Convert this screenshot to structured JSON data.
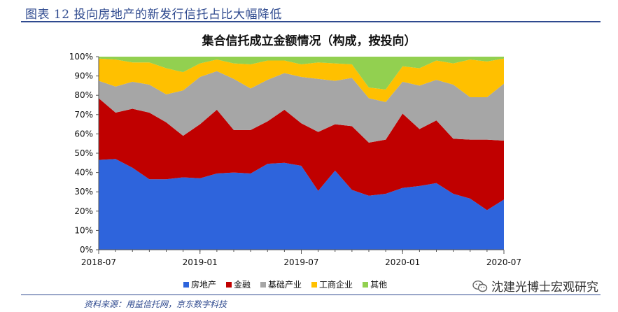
{
  "figure": {
    "caption": "图表 12 投向房地产的新发行信托占比大幅降低",
    "source": "资料来源：用益信托网，京东数字科技",
    "watermark": "沈建光博士宏观研究"
  },
  "chart_data": {
    "type": "area",
    "stacked": true,
    "title": "集合信托成立金额情况（构成，按投向）",
    "xlabel": "",
    "ylabel": "",
    "ylim": [
      0,
      100
    ],
    "y_ticks": [
      "0%",
      "10%",
      "20%",
      "30%",
      "40%",
      "50%",
      "60%",
      "70%",
      "80%",
      "90%",
      "100%"
    ],
    "x_tick_labels": [
      "2018-07",
      "2019-01",
      "2019-07",
      "2020-01",
      "2020-07"
    ],
    "x_tick_indices": [
      0,
      6,
      12,
      18,
      24
    ],
    "grid": false,
    "legend_position": "bottom",
    "x": [
      "2018-07",
      "2018-08",
      "2018-09",
      "2018-10",
      "2018-11",
      "2018-12",
      "2019-01",
      "2019-02",
      "2019-03",
      "2019-04",
      "2019-05",
      "2019-06",
      "2019-07",
      "2019-08",
      "2019-09",
      "2019-10",
      "2019-11",
      "2019-12",
      "2020-01",
      "2020-02",
      "2020-03",
      "2020-04",
      "2020-05",
      "2020-06",
      "2020-07"
    ],
    "series": [
      {
        "name": "房地产",
        "color": "#2e64dc",
        "values": [
          46.5,
          47,
          42.5,
          36.5,
          36.5,
          37.5,
          37,
          39.5,
          40,
          39.5,
          44.5,
          45,
          43.5,
          30.5,
          41,
          31,
          28,
          29,
          32,
          33,
          34.5,
          29,
          26.5,
          20.5,
          26
        ]
      },
      {
        "name": "金融",
        "color": "#c00000",
        "values": [
          32,
          24,
          30.5,
          34.5,
          29.5,
          21.5,
          28,
          33,
          22,
          22.5,
          22,
          27.5,
          22,
          30.5,
          24,
          33,
          27.5,
          28,
          38.5,
          29.5,
          32.5,
          28.5,
          30.5,
          36.5,
          30.5
        ]
      },
      {
        "name": "基础产业",
        "color": "#a6a6a6",
        "values": [
          9,
          13.5,
          14,
          14.5,
          14.5,
          23.5,
          24.5,
          20,
          26.5,
          21.5,
          21.5,
          19,
          24,
          27.5,
          22.5,
          25,
          23,
          19.5,
          16.5,
          22.5,
          21,
          28,
          22,
          22,
          29.5
        ]
      },
      {
        "name": "工商企业",
        "color": "#ffc000",
        "values": [
          11.5,
          14,
          10,
          11.5,
          13.5,
          9.5,
          7,
          6,
          8,
          12.5,
          10,
          6.5,
          6.5,
          8.5,
          9,
          7,
          5.5,
          6.5,
          8,
          9,
          10,
          11,
          19.5,
          18.5,
          13
        ]
      },
      {
        "name": "其他",
        "color": "#92d050",
        "values": [
          1,
          1.5,
          3,
          3,
          6,
          8,
          3.5,
          1.5,
          3.5,
          4,
          2,
          2,
          4,
          3,
          3.5,
          4,
          16,
          17,
          5,
          6,
          2,
          3.5,
          1.5,
          2.5,
          1
        ]
      }
    ]
  }
}
